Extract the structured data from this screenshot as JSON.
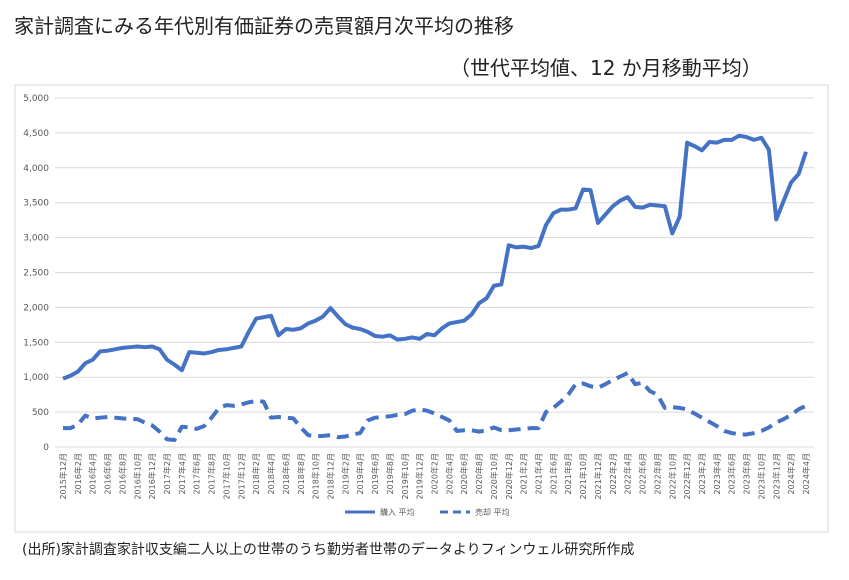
{
  "chart_data": {
    "type": "line",
    "title": "家計調査にみる年代別有価証券の売買額月次平均の推移",
    "subtitle": "（世代平均値、12 か月移動平均）",
    "source": "(出所)家計調査家計収支編二人以上の世帯のうち勤労者世帯のデータよりフィンウェル研究所作成",
    "categories": [
      "2015年12月",
      null,
      "2016年2月",
      null,
      "2016年4月",
      null,
      "2016年6月",
      null,
      "2016年8月",
      null,
      "2016年10月",
      null,
      "2016年12月",
      null,
      "2017年2月",
      null,
      "2017年4月",
      null,
      "2017年6月",
      null,
      "2017年8月",
      null,
      "2017年10月",
      null,
      "2017年12月",
      null,
      "2018年2月",
      null,
      "2018年4月",
      null,
      "2018年6月",
      null,
      "2018年8月",
      null,
      "2018年10月",
      null,
      "2018年12月",
      null,
      "2019年2月",
      null,
      "2019年4月",
      null,
      "2019年6月",
      null,
      "2019年8月",
      null,
      "2019年10月",
      null,
      "2019年12月",
      null,
      "2020年2月",
      null,
      "2020年4月",
      null,
      "2020年6月",
      null,
      "2020年8月",
      null,
      "2020年10月",
      null,
      "2020年12月",
      null,
      "2021年2月",
      null,
      "2021年4月",
      null,
      "2021年6月",
      null,
      "2021年8月",
      null,
      "2021年10月",
      null,
      "2021年12月",
      null,
      "2022年2月",
      null,
      "2022年4月",
      null,
      "2022年6月",
      null,
      "2022年8月",
      null,
      "2022年10月",
      null,
      "2022年12月",
      null,
      "2023年2月",
      null,
      "2023年4月",
      null,
      "2023年6月",
      null,
      "2023年8月",
      null,
      "2023年10月",
      null,
      "2023年12月",
      null,
      "2024年2月",
      null,
      "2024年4月"
    ],
    "series": [
      {
        "name": "購入 平均",
        "color": "#4472c4",
        "style": "solid",
        "values": [
          980,
          1020,
          1080,
          1200,
          1250,
          1370,
          1380,
          1400,
          1420,
          1430,
          1440,
          1430,
          1440,
          1400,
          1250,
          1180,
          1100,
          1360,
          1350,
          1340,
          1360,
          1390,
          1400,
          1420,
          1440,
          1650,
          1840,
          1860,
          1880,
          1600,
          1690,
          1680,
          1700,
          1770,
          1810,
          1870,
          1990,
          1870,
          1760,
          1710,
          1690,
          1650,
          1590,
          1580,
          1600,
          1540,
          1550,
          1570,
          1550,
          1620,
          1600,
          1700,
          1770,
          1790,
          1810,
          1900,
          2060,
          2130,
          2310,
          2330,
          2890,
          2860,
          2870,
          2850,
          2880,
          3180,
          3350,
          3400,
          3400,
          3420,
          3690,
          3680,
          3210,
          3330,
          3450,
          3530,
          3580,
          3440,
          3430,
          3470,
          3460,
          3450,
          3060,
          3300,
          4360,
          4310,
          4250,
          4370,
          4360,
          4400,
          4400,
          4460,
          4440,
          4400,
          4430,
          4260,
          3260,
          3530,
          3790,
          3910,
          4230
        ]
      },
      {
        "name": "売却 平均",
        "color": "#4472c4",
        "style": "dashed",
        "values": [
          270,
          270,
          320,
          450,
          410,
          420,
          430,
          420,
          410,
          400,
          400,
          350,
          310,
          220,
          110,
          100,
          290,
          280,
          260,
          300,
          420,
          560,
          600,
          590,
          610,
          640,
          660,
          650,
          420,
          430,
          420,
          410,
          280,
          170,
          150,
          160,
          170,
          140,
          150,
          180,
          200,
          380,
          420,
          430,
          440,
          460,
          470,
          520,
          540,
          520,
          480,
          430,
          380,
          230,
          240,
          240,
          220,
          240,
          280,
          240,
          240,
          250,
          260,
          270,
          270,
          500,
          560,
          650,
          750,
          900,
          910,
          870,
          850,
          900,
          960,
          1010,
          1060,
          900,
          920,
          800,
          750,
          560,
          570,
          560,
          540,
          480,
          420,
          360,
          300,
          230,
          200,
          180,
          180,
          200,
          230,
          280,
          350,
          400,
          460,
          540,
          590
        ]
      }
    ],
    "ylim": [
      0,
      5000
    ],
    "yticks": [
      0,
      500,
      {
        "value": 1000,
        "label": "1,000"
      },
      {
        "value": 1500,
        "label": "1,500"
      },
      {
        "value": 2000,
        "label": "2,000"
      },
      {
        "value": 2500,
        "label": "2,500"
      },
      {
        "value": 3000,
        "label": "3,000"
      },
      {
        "value": 3500,
        "label": "3,500"
      },
      {
        "value": 4000,
        "label": "4,000"
      },
      {
        "value": 4500,
        "label": "4,500"
      },
      {
        "value": 5000,
        "label": "5,000"
      }
    ],
    "grid": true,
    "legend": "bottom"
  }
}
